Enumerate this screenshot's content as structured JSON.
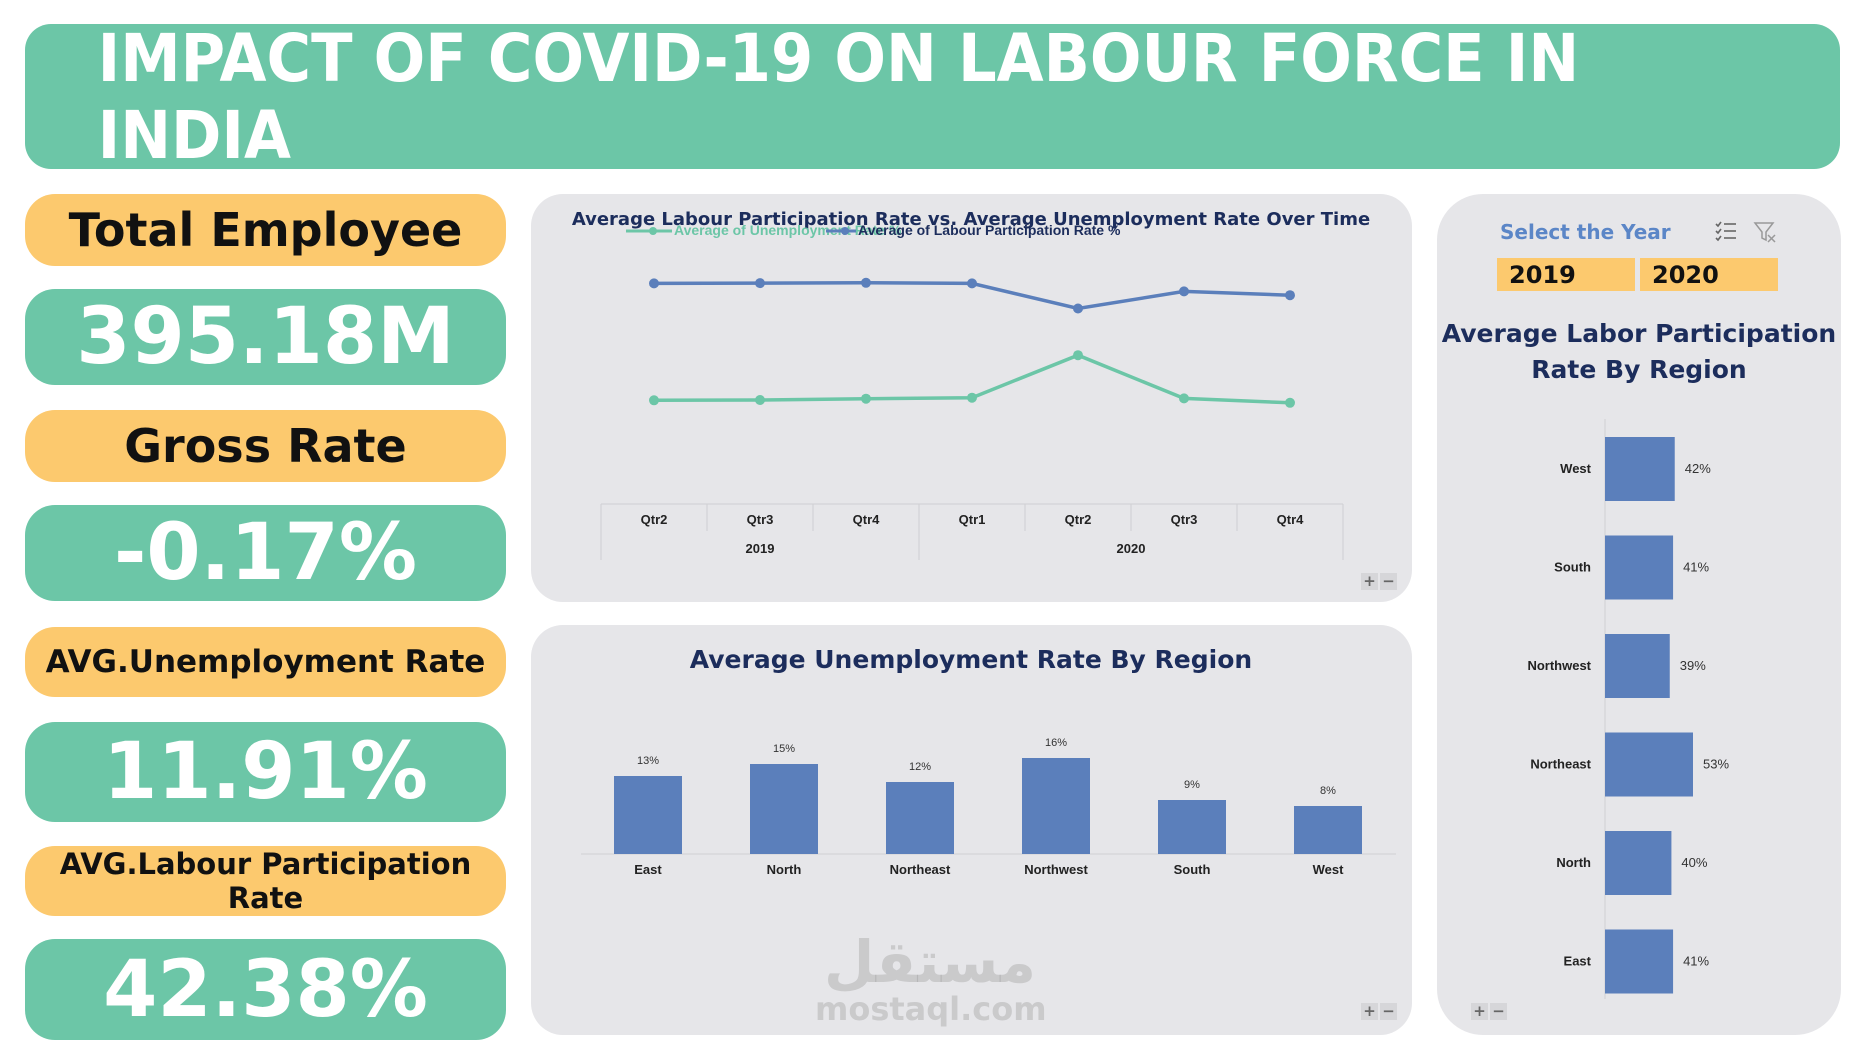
{
  "title": "IMPACT OF COVID-19 ON LABOUR FORCE IN INDIA",
  "kpis": {
    "total_employee_label": "Total Employee",
    "total_employee_value": "395.18M",
    "gross_rate_label": "Gross Rate",
    "gross_rate_value": "-0.17%",
    "avg_unemployment_label": "AVG.Unemployment  Rate",
    "avg_unemployment_value": "11.91%",
    "avg_lpr_label": "AVG.Labour Participation Rate",
    "avg_lpr_value": "42.38%"
  },
  "slicer": {
    "title": "Select the Year",
    "options": [
      "2019",
      "2020"
    ],
    "icons": [
      "multi-select-icon",
      "clear-filter-icon"
    ]
  },
  "zoom": {
    "plus": "+",
    "minus": "−"
  },
  "watermark": {
    "arabic": "مستقل",
    "latin": "mostaql.com"
  },
  "colors": {
    "accent_green": "#6cc6a7",
    "accent_yellow": "#fcc96e",
    "series_blue": "#5b7fbb",
    "series_green": "#6cc6a7",
    "title_navy": "#1c2d5c"
  },
  "chart_data": [
    {
      "type": "line",
      "title": "Average Labour Participation Rate vs. Average Unemployment Rate Over Time",
      "categories": [
        "Qtr2",
        "Qtr3",
        "Qtr4",
        "Qtr1",
        "Qtr2",
        "Qtr3",
        "Qtr4"
      ],
      "category_groups": [
        {
          "label": "2019",
          "span": 3
        },
        {
          "label": "2020",
          "span": 4
        }
      ],
      "series": [
        {
          "name": "Average of Unemployment Rate %",
          "color": "#6cc6a7",
          "values": [
            7.8,
            7.9,
            8.3,
            8.6,
            22.0,
            8.4,
            7.0
          ]
        },
        {
          "name": "Average of Labour Participation Rate %",
          "color": "#5b7fbb",
          "values": [
            44.6,
            44.7,
            44.8,
            44.6,
            36.7,
            42.1,
            40.9
          ]
        }
      ],
      "axes_visible": false,
      "grid": false,
      "legend": "top"
    },
    {
      "type": "bar",
      "title": "Average Unemployment Rate By Region",
      "categories": [
        "East",
        "North",
        "Northeast",
        "Northwest",
        "South",
        "West"
      ],
      "values": [
        13,
        15,
        12,
        16,
        9,
        8
      ],
      "data_labels": [
        "13%",
        "15%",
        "12%",
        "16%",
        "9%",
        "8%"
      ],
      "ylim": [
        0,
        20
      ],
      "grid": false
    },
    {
      "type": "bar",
      "orientation": "horizontal",
      "title": "Average Labor Participation Rate  By Region",
      "categories": [
        "West",
        "South",
        "Northwest",
        "Northeast",
        "North",
        "East"
      ],
      "values": [
        42,
        41,
        39,
        53,
        40,
        41
      ],
      "data_labels": [
        "42%",
        "41%",
        "39%",
        "53%",
        "40%",
        "41%"
      ],
      "xlim": [
        0,
        100
      ],
      "grid": false
    }
  ]
}
